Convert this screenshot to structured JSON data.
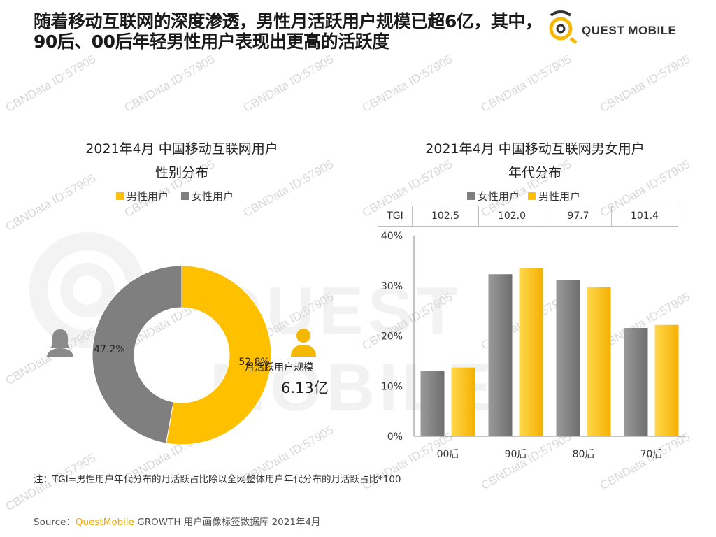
{
  "header": {
    "title": "随着移动互联网的深度渗透，男性月活跃用户规模已超6亿，其中，90后、00后年轻男性用户表现出更高的活跃度",
    "logo_text": "QUEST MOBILE"
  },
  "watermark": {
    "text": "CBNData ID:57905",
    "big_text": "QUEST MOBILE"
  },
  "colors": {
    "male": "#ffc000",
    "female": "#7f7f7f",
    "accent": "#f5a800"
  },
  "left_panel": {
    "title_line1": "2021年4月 中国移动互联网用户",
    "title_line2": "性别分布",
    "legend_male": "男性用户",
    "legend_female": "女性用户",
    "male_icon": "male-user-icon",
    "female_icon": "female-user-icon",
    "scale_label": "月活跃用户规模",
    "scale_value": "6.13亿"
  },
  "right_panel": {
    "title_line1": "2021年4月 中国移动互联网男女用户",
    "title_line2": "年代分布",
    "legend_female": "女性用户",
    "legend_male": "男性用户",
    "tgi_label": "TGI",
    "tgi_values": [
      "102.5",
      "102.0",
      "97.7",
      "101.4"
    ]
  },
  "chart_data": [
    {
      "type": "pie",
      "title": "2021年4月 中国移动互联网用户性别分布",
      "categories": [
        "男性用户",
        "女性用户"
      ],
      "values": [
        52.8,
        47.2
      ],
      "labels": [
        "52.8%",
        "47.2%"
      ]
    },
    {
      "type": "bar",
      "title": "2021年4月 中国移动互联网男女用户年代分布",
      "categories": [
        "00后",
        "90后",
        "80后",
        "70后"
      ],
      "series": [
        {
          "name": "女性用户",
          "values": [
            13.0,
            32.3,
            31.2,
            21.6
          ]
        },
        {
          "name": "男性用户",
          "values": [
            13.7,
            33.5,
            29.7,
            22.2
          ]
        }
      ],
      "yticks": [
        "0%",
        "10%",
        "20%",
        "30%",
        "40%"
      ],
      "ylim": [
        0,
        40
      ]
    }
  ],
  "footer": {
    "note": "注：TGI=男性用户年代分布的月活跃占比除以全网整体用户年代分布的月活跃占比*100",
    "source_prefix": "Source：",
    "source_brand": "QuestMobile",
    "source_rest": " GROWTH 用户画像标签数据库 2021年4月"
  }
}
